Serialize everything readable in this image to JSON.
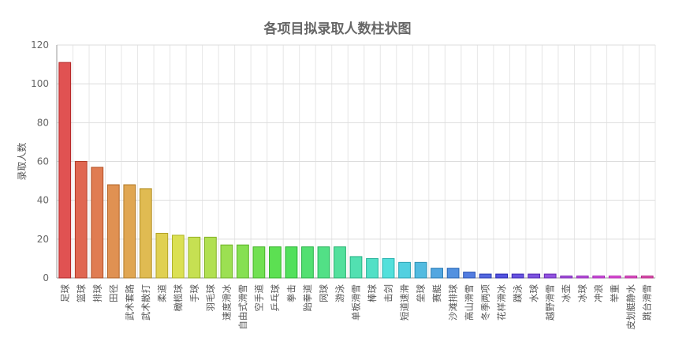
{
  "chart_data": {
    "type": "bar",
    "title": "各项目拟录取人数柱状图",
    "ylabel": "录取人数",
    "xlabel": "",
    "ylim": [
      0,
      120
    ],
    "yticks": [
      0,
      20,
      40,
      60,
      80,
      100,
      120
    ],
    "grid": true,
    "categories": [
      "足球",
      "篮球",
      "排球",
      "田径",
      "武术套路",
      "武术散打",
      "柔道",
      "橄榄球",
      "手球",
      "羽毛球",
      "速度滑冰",
      "自由式滑雪",
      "空手道",
      "乒乓球",
      "拳击",
      "跆拳道",
      "网球",
      "游泳",
      "单板滑雪",
      "棒球",
      "击剑",
      "短道速滑",
      "垒球",
      "赛艇",
      "沙滩排球",
      "高山滑雪",
      "冬季两项",
      "花样滑冰",
      "蹼泳",
      "水球",
      "越野滑雪",
      "冰壶",
      "冰球",
      "冲浪",
      "举重",
      "皮划艇静水",
      "跳台滑雪"
    ],
    "values": [
      111,
      60,
      57,
      48,
      48,
      46,
      23,
      22,
      21,
      21,
      17,
      17,
      16,
      16,
      16,
      16,
      16,
      16,
      11,
      10,
      10,
      8,
      8,
      5,
      5,
      3,
      2,
      2,
      2,
      2,
      2,
      1,
      1,
      1,
      1,
      1,
      1
    ]
  }
}
